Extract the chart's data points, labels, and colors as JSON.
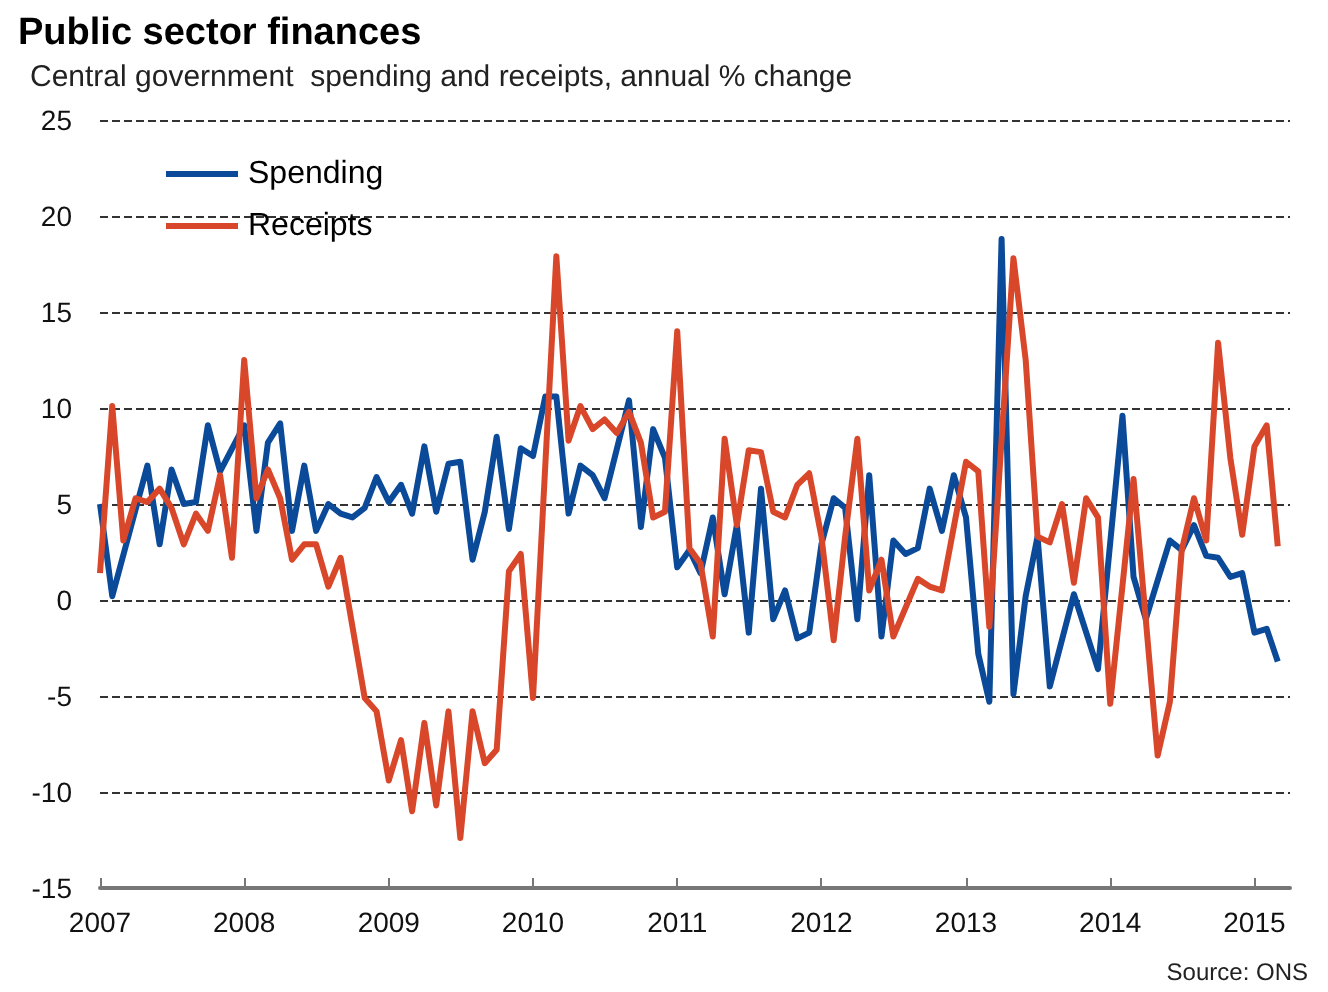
{
  "chart_data": {
    "type": "line",
    "title": "Public sector finances",
    "subtitle": "Central government  spending and receipts, annual % change",
    "annotations": [
      "Source: ONS"
    ],
    "ylim": [
      -15,
      25
    ],
    "yticks": [
      -15,
      -10,
      -5,
      0,
      5,
      10,
      15,
      20,
      25
    ],
    "xlim": [
      "2007-01",
      "2015-04"
    ],
    "xticks": [
      "2007",
      "2008",
      "2009",
      "2010",
      "2011",
      "2012",
      "2013",
      "2014",
      "2015"
    ],
    "grid": "y",
    "legend": "top left",
    "marker": "none",
    "line_style": "solid",
    "series": [
      {
        "name": "Spending",
        "color": "#0b4a98",
        "x": [
          "2007-01",
          "2007-02",
          "2007-05",
          "2007-06",
          "2007-07",
          "2007-08",
          "2007-09",
          "2007-10",
          "2007-11",
          "2008-01",
          "2008-02",
          "2008-03",
          "2008-04",
          "2008-05",
          "2008-06",
          "2008-07",
          "2008-08",
          "2008-09",
          "2008-10",
          "2008-11",
          "2008-12",
          "2009-01",
          "2009-02",
          "2009-03",
          "2009-04",
          "2009-05",
          "2009-06",
          "2009-07",
          "2009-08",
          "2009-09",
          "2009-10",
          "2009-11",
          "2009-12",
          "2010-01",
          "2010-02",
          "2010-03",
          "2010-04",
          "2010-05",
          "2010-06",
          "2010-07",
          "2010-09",
          "2010-10",
          "2010-11",
          "2010-12",
          "2011-01",
          "2011-02",
          "2011-03",
          "2011-04",
          "2011-05",
          "2011-06",
          "2011-07",
          "2011-08",
          "2011-09",
          "2011-10",
          "2011-11",
          "2011-12",
          "2012-01",
          "2012-02",
          "2012-03",
          "2012-04",
          "2012-05",
          "2012-06",
          "2012-07",
          "2012-08",
          "2012-09",
          "2012-10",
          "2012-11",
          "2012-12",
          "2013-01",
          "2013-02",
          "2013-03",
          "2013-04",
          "2013-05",
          "2013-06",
          "2013-07",
          "2013-08",
          "2013-10",
          "2013-12",
          "2014-02",
          "2014-03",
          "2014-04",
          "2014-06",
          "2014-07",
          "2014-08",
          "2014-09",
          "2014-10",
          "2014-11",
          "2014-12",
          "2015-01",
          "2015-02",
          "2015-03"
        ],
        "values": [
          5.0,
          0.2,
          7.0,
          2.9,
          6.8,
          5.0,
          5.1,
          9.1,
          6.7,
          9.1,
          3.6,
          8.2,
          9.2,
          3.6,
          7.0,
          3.6,
          5.0,
          4.5,
          4.3,
          4.8,
          6.4,
          5.1,
          6.0,
          4.5,
          8.0,
          4.6,
          7.1,
          7.2,
          2.1,
          4.6,
          8.5,
          3.7,
          7.9,
          7.5,
          10.6,
          10.6,
          4.5,
          7.0,
          6.5,
          5.3,
          10.4,
          3.8,
          8.9,
          7.4,
          1.7,
          2.6,
          1.4,
          4.3,
          0.3,
          3.9,
          -1.7,
          5.8,
          -1.0,
          0.5,
          -2.0,
          -1.7,
          2.9,
          5.3,
          4.8,
          -1.0,
          6.5,
          -1.9,
          3.1,
          2.4,
          2.7,
          5.8,
          3.6,
          6.5,
          4.3,
          -2.8,
          -5.3,
          18.8,
          -4.9,
          0.2,
          3.3,
          -4.5,
          0.3,
          -3.6,
          9.6,
          1.2,
          -1.0,
          3.1,
          2.6,
          3.9,
          2.3,
          2.2,
          1.2,
          1.4,
          -1.7,
          -1.5,
          -3.2
        ]
      },
      {
        "name": "Receipts",
        "color": "#d9472b",
        "x": [
          "2007-01",
          "2007-02",
          "2007-03",
          "2007-04",
          "2007-05",
          "2007-06",
          "2007-07",
          "2007-08",
          "2007-09",
          "2007-10",
          "2007-11",
          "2007-12",
          "2008-01",
          "2008-02",
          "2008-03",
          "2008-04",
          "2008-05",
          "2008-06",
          "2008-07",
          "2008-08",
          "2008-09",
          "2008-11",
          "2008-12",
          "2009-01",
          "2009-02",
          "2009-03",
          "2009-04",
          "2009-05",
          "2009-06",
          "2009-07",
          "2009-08",
          "2009-09",
          "2009-10",
          "2009-11",
          "2009-12",
          "2010-01",
          "2010-03",
          "2010-04",
          "2010-05",
          "2010-06",
          "2010-07",
          "2010-08",
          "2010-09",
          "2010-10",
          "2010-11",
          "2010-12",
          "2011-01",
          "2011-02",
          "2011-03",
          "2011-04",
          "2011-05",
          "2011-06",
          "2011-07",
          "2011-08",
          "2011-09",
          "2011-10",
          "2011-11",
          "2011-12",
          "2012-01",
          "2012-02",
          "2012-03",
          "2012-04",
          "2012-05",
          "2012-06",
          "2012-07",
          "2012-09",
          "2012-10",
          "2012-11",
          "2013-01",
          "2013-02",
          "2013-03",
          "2013-05",
          "2013-06",
          "2013-07",
          "2013-08",
          "2013-09",
          "2013-10",
          "2013-11",
          "2013-12",
          "2014-01",
          "2014-03",
          "2014-05",
          "2014-06",
          "2014-07",
          "2014-08",
          "2014-09",
          "2014-10",
          "2014-11",
          "2014-12",
          "2015-01",
          "2015-02",
          "2015-03"
        ],
        "values": [
          1.4,
          10.1,
          3.1,
          5.3,
          5.1,
          5.8,
          4.8,
          2.9,
          4.5,
          3.6,
          6.5,
          2.2,
          12.5,
          5.3,
          6.8,
          5.3,
          2.1,
          2.9,
          2.9,
          0.7,
          2.2,
          -5.1,
          -5.8,
          -9.4,
          -7.3,
          -11.0,
          -6.4,
          -10.7,
          -5.8,
          -12.4,
          -5.8,
          -8.5,
          -7.8,
          1.5,
          2.4,
          -5.1,
          17.9,
          8.3,
          10.1,
          8.9,
          9.4,
          8.7,
          9.8,
          8.2,
          4.3,
          4.6,
          14.0,
          2.7,
          1.9,
          -1.9,
          8.4,
          3.9,
          7.8,
          7.7,
          4.6,
          4.3,
          6.0,
          6.6,
          3.3,
          -2.1,
          3.3,
          8.4,
          0.5,
          2.1,
          -1.9,
          1.1,
          0.7,
          0.5,
          7.2,
          6.7,
          -1.4,
          17.8,
          12.5,
          3.3,
          3.0,
          5.0,
          0.9,
          5.3,
          4.3,
          -5.4,
          6.3,
          -8.1,
          -5.3,
          2.6,
          5.3,
          3.1,
          13.4,
          7.4,
          3.4,
          8.0,
          9.1,
          2.8
        ]
      }
    ]
  }
}
